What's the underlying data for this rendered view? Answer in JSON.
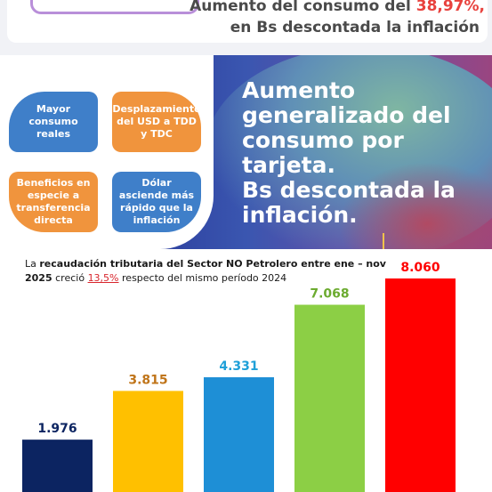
{
  "header": {
    "line1_prefix": "Aumento del consumo del",
    "line1_percent": "38,97%,",
    "line2": "en Bs descontada la inflación"
  },
  "quadrants": [
    {
      "label": "Mayor consumo reales",
      "color": "#3f7fc9"
    },
    {
      "label": "Desplazamiento del USD a TDD y TDC",
      "color": "#f0943d"
    },
    {
      "label": "Beneficios en especie a transferencia directa",
      "color": "#f0943d"
    },
    {
      "label": "Dólar asciende más rápido que la inflación",
      "color": "#3f7fc9"
    }
  ],
  "banner": {
    "text_line1": "Aumento",
    "text_line2": "generalizado del",
    "text_line3": "consumo por",
    "text_line4": "tarjeta.",
    "text_line5": "Bs descontada la",
    "text_line6": "inflación."
  },
  "chart_caption": {
    "part1": "La",
    "part2_bold": "recaudación tributaria del Sector NO Petrolero entre ene – nov 2025",
    "part3": "creció",
    "percent": "13,5%",
    "part4": "respecto del mismo período 2024"
  },
  "chart_data": {
    "type": "bar",
    "title": "",
    "xlabel": "",
    "ylabel": "",
    "categories": [
      "",
      "",
      "",
      "",
      ""
    ],
    "values": [
      1976,
      3815,
      4331,
      7068,
      8060
    ],
    "value_labels": [
      "1.976",
      "3.815",
      "4.331",
      "7.068",
      "8.060"
    ],
    "bar_colors": [
      "#0c2461",
      "#ffc000",
      "#1e8fd6",
      "#8ccf45",
      "#ff0000"
    ],
    "label_colors": [
      "#0c2461",
      "#c0751a",
      "#1fa0d8",
      "#6cab30",
      "#ff0000"
    ],
    "ylim": [
      0,
      8060
    ],
    "grid": false,
    "legend": "none"
  }
}
